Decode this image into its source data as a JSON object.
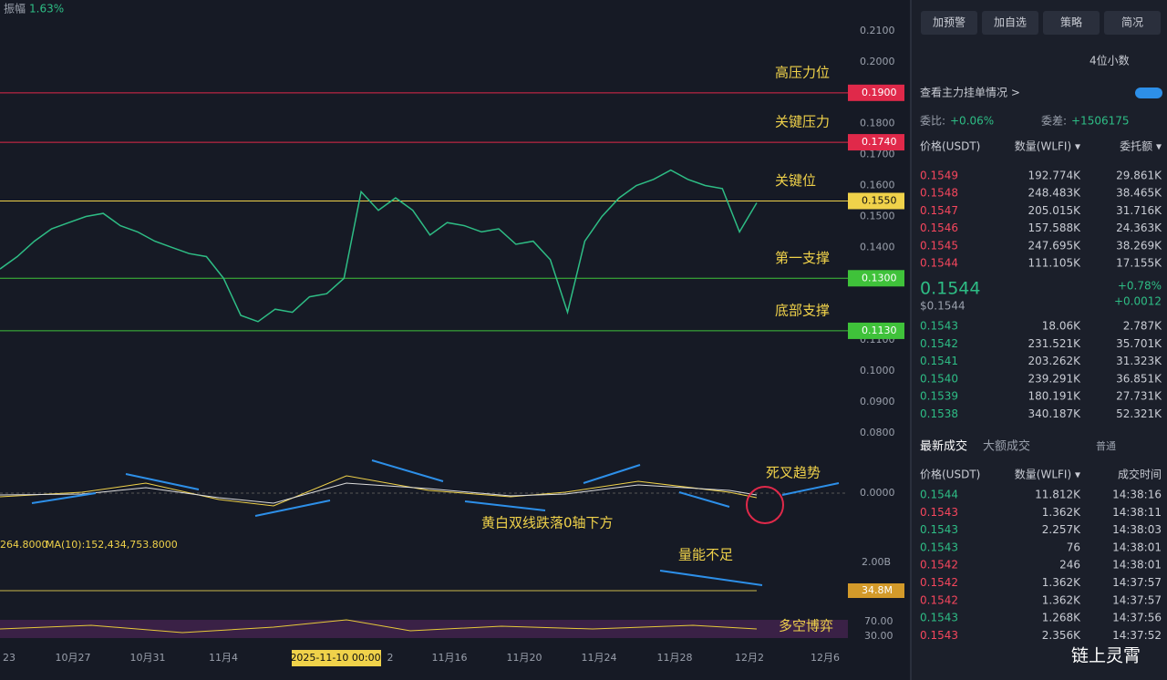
{
  "header": {
    "amplitude_label": "振幅",
    "amplitude": "1.63%",
    "ma_line": "264.8000",
    "ma_text": "MA(10):152,434,753.8000"
  },
  "price_axis": [
    {
      "value": 0.21,
      "label": "0.2100"
    },
    {
      "value": 0.2,
      "label": "0.2000"
    },
    {
      "value": 0.18,
      "label": "0.1800"
    },
    {
      "value": 0.17,
      "label": "0.1700"
    },
    {
      "value": 0.16,
      "label": "0.1600"
    },
    {
      "value": 0.15,
      "label": "0.1500"
    },
    {
      "value": 0.14,
      "label": "0.1400"
    },
    {
      "value": 0.11,
      "label": "0.1100"
    },
    {
      "value": 0.1,
      "label": "0.1000"
    },
    {
      "value": 0.09,
      "label": "0.0900"
    },
    {
      "value": 0.08,
      "label": "0.0800"
    }
  ],
  "levels": [
    {
      "value": 0.19,
      "label": "0.1900",
      "name": "高压力位",
      "color": "#e0294a"
    },
    {
      "value": 0.174,
      "label": "0.1740",
      "name": "关键压力",
      "color": "#e0294a"
    },
    {
      "value": 0.155,
      "label": "0.1550",
      "name": "关键位",
      "color": "#f0d24a"
    },
    {
      "value": 0.13,
      "label": "0.1300",
      "name": "第一支撑",
      "color": "#3fc23a"
    },
    {
      "value": 0.113,
      "label": "0.1130",
      "name": "底部支撑",
      "color": "#3fc23a"
    }
  ],
  "closes": [
    0.133,
    0.137,
    0.142,
    0.146,
    0.148,
    0.15,
    0.151,
    0.147,
    0.145,
    0.142,
    0.14,
    0.138,
    0.137,
    0.13,
    0.118,
    0.116,
    0.12,
    0.119,
    0.124,
    0.125,
    0.13,
    0.158,
    0.152,
    0.156,
    0.152,
    0.144,
    0.148,
    0.147,
    0.145,
    0.146,
    0.141,
    0.142,
    0.136,
    0.119,
    0.142,
    0.15,
    0.156,
    0.16,
    0.162,
    0.165,
    0.162,
    0.16,
    0.159,
    0.145,
    0.1544
  ],
  "lower_axes": {
    "macd_zero": "0.0000",
    "volume_top": "2.00B",
    "volume_badge": "34.8M",
    "rsi_high": "70.00",
    "rsi_low": "30.00"
  },
  "x_axis": [
    "23",
    "10月27",
    "10月31",
    "11月4",
    "2025-11-10 00:00",
    "2",
    "11月16",
    "11月20",
    "11月24",
    "11月28",
    "12月2",
    "12月6"
  ],
  "annotations": {
    "death_cross": "死叉趋势",
    "below_zero": "黄白双线跌落0轴下方",
    "low_volume": "量能不足",
    "tug_of_war": "多空博弈"
  },
  "watermark": "链上灵霄",
  "panel": {
    "buttons": [
      "加预警",
      "加自选",
      "策略",
      "简况"
    ],
    "decimals": "4位小数",
    "main_orders": "查看主力挂单情况 >",
    "ratio_label": "委比:",
    "ratio": "+0.06%",
    "diff_label": "委差:",
    "diff": "+1506175",
    "book_headers": [
      "价格(USDT)",
      "数量(WLFI) ▾",
      "委托额 ▾"
    ],
    "asks": [
      [
        "0.1549",
        "192.774K",
        "29.861K"
      ],
      [
        "0.1548",
        "248.483K",
        "38.465K"
      ],
      [
        "0.1547",
        "205.015K",
        "31.716K"
      ],
      [
        "0.1546",
        "157.588K",
        "24.363K"
      ],
      [
        "0.1545",
        "247.695K",
        "38.269K"
      ],
      [
        "0.1544",
        "111.105K",
        "17.155K"
      ]
    ],
    "last_price": "0.1544",
    "last_usd": "$0.1544",
    "change_pct": "+0.78%",
    "change": "+0.0012",
    "bids": [
      [
        "0.1543",
        "18.06K",
        "2.787K"
      ],
      [
        "0.1542",
        "231.521K",
        "35.701K"
      ],
      [
        "0.1541",
        "203.262K",
        "31.323K"
      ],
      [
        "0.1540",
        "239.291K",
        "36.851K"
      ],
      [
        "0.1539",
        "180.191K",
        "27.731K"
      ],
      [
        "0.1538",
        "340.187K",
        "52.321K"
      ]
    ],
    "tabs": [
      "最新成交",
      "大额成交",
      "普通"
    ],
    "trade_headers": [
      "价格(USDT)",
      "数量(WLFI) ▾",
      "成交时间"
    ],
    "trades": [
      {
        "price": "0.1544",
        "qty": "11.812K",
        "time": "14:38:16",
        "side": "buy"
      },
      {
        "price": "0.1543",
        "qty": "1.362K",
        "time": "14:38:11",
        "side": "sell"
      },
      {
        "price": "0.1543",
        "qty": "2.257K",
        "time": "14:38:03",
        "side": "buy"
      },
      {
        "price": "0.1543",
        "qty": "76",
        "time": "14:38:01",
        "side": "buy"
      },
      {
        "price": "0.1542",
        "qty": "246",
        "time": "14:38:01",
        "side": "sell"
      },
      {
        "price": "0.1542",
        "qty": "1.362K",
        "time": "14:37:57",
        "side": "sell"
      },
      {
        "price": "0.1542",
        "qty": "1.362K",
        "time": "14:37:57",
        "side": "sell"
      },
      {
        "price": "0.1543",
        "qty": "1.268K",
        "time": "14:37:56",
        "side": "buy"
      },
      {
        "price": "0.1543",
        "qty": "2.356K",
        "time": "14:37:52",
        "side": "sell"
      }
    ]
  }
}
